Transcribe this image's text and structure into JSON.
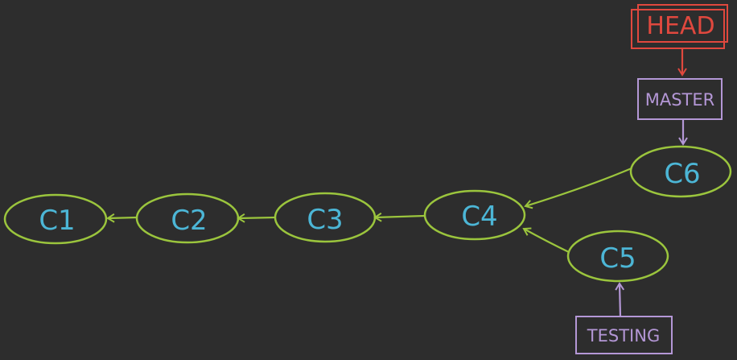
{
  "diagram": {
    "commits": [
      {
        "id": "c1",
        "label": "C1"
      },
      {
        "id": "c2",
        "label": "C2"
      },
      {
        "id": "c3",
        "label": "C3"
      },
      {
        "id": "c4",
        "label": "C4"
      },
      {
        "id": "c5",
        "label": "C5"
      },
      {
        "id": "c6",
        "label": "C6"
      }
    ],
    "refs": {
      "head": "HEAD",
      "master": "MASTER",
      "testing": "TESTING"
    },
    "colors": {
      "background": "#2d2d2d",
      "commit_stroke": "#9bc53d",
      "commit_text": "#4cb6d6",
      "head": "#e0483e",
      "branch": "#b497d6"
    }
  }
}
